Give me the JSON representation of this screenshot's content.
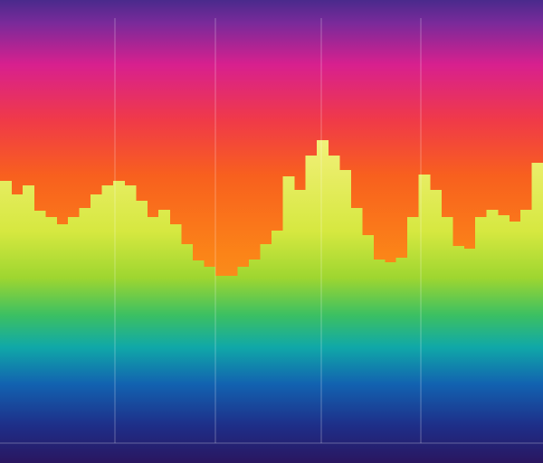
{
  "chart_data": {
    "type": "bar",
    "values": [
      290,
      275,
      285,
      257,
      250,
      242,
      250,
      260,
      275,
      285,
      290,
      285,
      268,
      250,
      258,
      242,
      220,
      202,
      195,
      185,
      185,
      195,
      203,
      220,
      235,
      295,
      280,
      318,
      335,
      318,
      302,
      260,
      230,
      203,
      200,
      205,
      250,
      297,
      280,
      250,
      218,
      215,
      250,
      258,
      252,
      245,
      258,
      310
    ],
    "ylim": [
      0,
      490
    ]
  }
}
